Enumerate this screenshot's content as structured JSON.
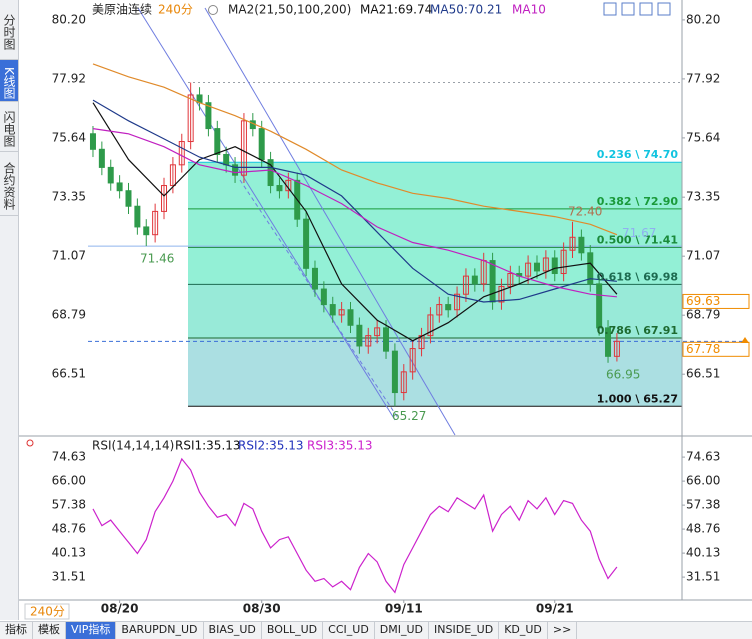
{
  "chart_data": [
    {
      "type": "candlestick",
      "symbol": "美原油连续",
      "period": "240分",
      "indicator": "MA2(21,50,100,200)",
      "xlim": [
        -0.56,
        66.33
      ],
      "ylim": [
        64.16,
        80.66
      ],
      "yticks": [
        {
          "value": 80.2,
          "label": "80.20"
        },
        77.92,
        75.64,
        73.35,
        71.07,
        68.79,
        66.51
      ],
      "up_color": "#e0353a",
      "down_color": "#2e9a4a",
      "candles": {
        "open": [
          75.8,
          75.2,
          74.5,
          73.9,
          73.6,
          73.0,
          72.2,
          71.9,
          72.8,
          73.8,
          74.6,
          75.5,
          77.3,
          77.0,
          76.0,
          75.0,
          74.6,
          74.2,
          76.3,
          76.0,
          74.8,
          73.8,
          73.6,
          74.0,
          72.5,
          70.6,
          69.8,
          69.2,
          68.8,
          69.0,
          68.4,
          67.6,
          68.0,
          68.3,
          67.4,
          65.8,
          66.6,
          67.5,
          68.0,
          68.8,
          69.2,
          69.0,
          69.6,
          70.3,
          70.0,
          70.9,
          69.3,
          69.9,
          70.4,
          70.3,
          70.8,
          70.5,
          71.0,
          70.4,
          71.3,
          71.8,
          71.2,
          70.0,
          68.3,
          67.2
        ],
        "high": [
          76.1,
          75.5,
          74.8,
          74.2,
          73.9,
          73.3,
          72.5,
          73.1,
          74.1,
          74.9,
          75.8,
          77.78,
          77.6,
          77.3,
          76.3,
          75.3,
          74.9,
          76.6,
          76.6,
          76.3,
          75.1,
          74.1,
          74.3,
          74.3,
          72.8,
          70.9,
          70.1,
          69.5,
          69.3,
          69.3,
          68.7,
          68.3,
          68.6,
          68.6,
          67.7,
          66.9,
          67.8,
          68.3,
          69.1,
          69.5,
          69.5,
          69.9,
          70.6,
          70.6,
          71.2,
          71.2,
          70.2,
          70.7,
          70.7,
          71.1,
          71.1,
          71.3,
          71.3,
          71.6,
          72.4,
          72.1,
          71.5,
          70.3,
          68.6,
          68.1
        ],
        "low": [
          74.9,
          74.2,
          73.6,
          73.3,
          72.7,
          71.9,
          71.46,
          71.6,
          72.5,
          73.5,
          74.3,
          75.2,
          76.7,
          75.7,
          74.7,
          74.3,
          73.9,
          73.9,
          75.7,
          74.5,
          73.5,
          73.3,
          73.3,
          72.2,
          70.3,
          69.5,
          68.9,
          68.5,
          68.5,
          68.1,
          67.3,
          67.3,
          67.7,
          67.1,
          65.27,
          65.5,
          66.3,
          67.2,
          67.7,
          68.5,
          68.7,
          68.7,
          69.3,
          69.7,
          69.7,
          69.0,
          69.0,
          69.6,
          70.0,
          70.0,
          70.2,
          70.2,
          70.1,
          70.1,
          71.0,
          70.9,
          69.7,
          68.0,
          66.95,
          67.0
        ],
        "close": [
          75.2,
          74.5,
          73.9,
          73.6,
          73.0,
          72.2,
          71.9,
          72.8,
          73.8,
          74.6,
          75.5,
          77.3,
          77.0,
          76.0,
          75.0,
          74.6,
          74.2,
          76.3,
          76.0,
          74.8,
          73.8,
          73.6,
          74.0,
          72.5,
          70.6,
          69.8,
          69.2,
          68.8,
          69.0,
          68.4,
          67.6,
          68.0,
          68.3,
          67.4,
          65.8,
          66.6,
          67.5,
          68.0,
          68.8,
          69.2,
          69.0,
          69.6,
          70.3,
          70.0,
          70.9,
          69.3,
          69.9,
          70.4,
          70.3,
          70.8,
          70.5,
          71.0,
          70.4,
          71.3,
          71.8,
          71.2,
          70.0,
          68.3,
          67.2,
          67.78
        ]
      },
      "series": [
        {
          "name": "MA21:69.74",
          "color": "#111111",
          "x": [
            0,
            4,
            8,
            12,
            16,
            20,
            24,
            28,
            32,
            36,
            40,
            44,
            48,
            52,
            56,
            59
          ],
          "values": [
            77.0,
            74.8,
            73.4,
            74.8,
            75.3,
            74.6,
            72.8,
            70.0,
            68.6,
            67.8,
            68.5,
            69.5,
            70.0,
            70.6,
            70.8,
            69.6
          ]
        },
        {
          "name": "MA50:70.21",
          "color": "#1f3a8a",
          "x": [
            0,
            4,
            8,
            12,
            16,
            20,
            24,
            28,
            32,
            36,
            40,
            44,
            48,
            52,
            56,
            59
          ],
          "values": [
            77.1,
            76.3,
            75.6,
            74.9,
            74.5,
            74.5,
            74.2,
            73.4,
            72.0,
            70.6,
            69.6,
            69.3,
            69.4,
            69.8,
            70.2,
            70.1
          ]
        },
        {
          "name": "MA10",
          "color": "#c020c0",
          "x": [
            0,
            4,
            8,
            12,
            16,
            20,
            24,
            28,
            32,
            36,
            40,
            44,
            48,
            52,
            56,
            59
          ],
          "values": [
            76.0,
            75.8,
            75.3,
            74.6,
            74.3,
            74.4,
            73.8,
            73.1,
            72.2,
            71.6,
            71.3,
            70.9,
            70.3,
            69.9,
            69.6,
            69.5
          ]
        },
        {
          "color": "#e08a2a",
          "x": [
            0,
            4,
            8,
            12,
            16,
            20,
            24,
            28,
            32,
            36,
            40,
            44,
            48,
            52,
            56,
            59
          ],
          "values": [
            78.5,
            78.0,
            77.6,
            77.0,
            76.5,
            75.9,
            75.2,
            74.4,
            73.9,
            73.5,
            73.3,
            73.0,
            72.8,
            72.6,
            72.3,
            71.9
          ]
        }
      ],
      "fib": {
        "levels": [
          {
            "value": 74.7,
            "label": "0.236 \\ 74.70",
            "color": "#12c4e0"
          },
          {
            "value": 72.9,
            "label": "0.382 \\ 72.90",
            "color": "#1a9a3a"
          },
          {
            "value": 71.41,
            "label": "0.500 \\ 71.41",
            "color": "#1a8a3a"
          },
          {
            "value": 69.98,
            "label": "0.618 \\ 69.98",
            "color": "#1d6a50"
          },
          {
            "value": 67.91,
            "label": "0.786 \\ 67.91",
            "color": "#1d6a30"
          },
          {
            "value": 65.27,
            "label": "1.000 \\ 65.27",
            "color": "#111111"
          }
        ],
        "band_colors": [
          "#93f0d6",
          "#93f0d6",
          "#93f0d6",
          "#98ead8",
          "#abdfe2"
        ]
      },
      "hlines": [
        {
          "value": 77.78,
          "color": "#9aa0a8",
          "style": "dotted"
        },
        {
          "value": 71.46,
          "color": "#8fb4ee",
          "style": "solid"
        },
        {
          "value": 67.78,
          "color": "#3a6fd8",
          "style": "dashed"
        }
      ],
      "annotations": [
        {
          "value": 71.46,
          "color": "#4a9a50"
        },
        {
          "value": 65.27,
          "color": "#4a9a50"
        },
        {
          "value": 72.4,
          "label": "72.40",
          "color": "#b07050"
        },
        {
          "value": 66.95,
          "color": "#4a9a50"
        },
        {
          "value": 71.67,
          "color": "#8fb0f0"
        }
      ],
      "price_tags": [
        {
          "value": 69.63,
          "color": "#f08c00"
        },
        {
          "value": 67.78,
          "color": "#f08c00"
        }
      ]
    },
    {
      "type": "line",
      "title": "RSI(14,14,14)",
      "xlim": [
        -0.56,
        66.33
      ],
      "ylim": [
        24,
        77.9
      ],
      "yticks": [
        74.63,
        {
          "value": 66,
          "label": "66.00"
        },
        57.38,
        48.76,
        40.13,
        31.51
      ],
      "xticks": [
        {
          "value": 3,
          "label": "08/20"
        },
        {
          "value": 19,
          "label": "08/30"
        },
        {
          "value": 35,
          "label": "09/11"
        },
        {
          "value": 52,
          "label": "09/21"
        }
      ],
      "series": [
        {
          "name": "RSI1:35.13",
          "color": "#111111"
        },
        {
          "name": "RSI2:35.13",
          "color": "#2233bb"
        },
        {
          "name": "RSI3:35.13",
          "color": "#cc22cc",
          "values": [
            56,
            50,
            52,
            48,
            44,
            40,
            45,
            55,
            60,
            66,
            74,
            70,
            62,
            57,
            53,
            54,
            50,
            58,
            56,
            48,
            42,
            45,
            46,
            40,
            34,
            30,
            31,
            28,
            30,
            27,
            35,
            40,
            37,
            30,
            26,
            36,
            42,
            48,
            54,
            57,
            55,
            60,
            58,
            56,
            61,
            48,
            54,
            57,
            52,
            59,
            56,
            60,
            54,
            59,
            58,
            52,
            48,
            38,
            31,
            35.13
          ]
        }
      ]
    }
  ],
  "ui": {
    "sidebar": [
      "分时图",
      "K线图",
      "闪电图",
      "合约资料"
    ],
    "period_button": "240分",
    "tabs": [
      "指标",
      "模板",
      "VIP指标",
      "BARUPDN_UD",
      "BIAS_UD",
      "BOLL_UD",
      "CCI_UD",
      "DMI_UD",
      "INSIDE_UD",
      "KD_UD",
      ">>"
    ]
  }
}
